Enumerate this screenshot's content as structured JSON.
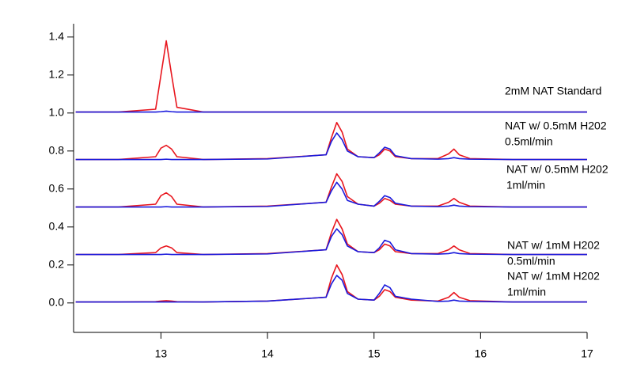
{
  "chart_data": {
    "type": "line",
    "x": [
      12.2,
      12.6,
      12.95,
      13.0,
      13.05,
      13.1,
      13.15,
      13.4,
      14.0,
      14.55,
      14.6,
      14.65,
      14.7,
      14.75,
      14.85,
      15.0,
      15.05,
      15.1,
      15.15,
      15.2,
      15.35,
      15.6,
      15.7,
      15.75,
      15.8,
      15.9,
      16.3,
      17.0
    ],
    "series": [
      {
        "color": "#e8161e",
        "values": [
          1.005,
          1.005,
          1.02,
          1.2,
          1.38,
          1.2,
          1.03,
          1.005,
          1.005,
          1.005,
          1.005,
          1.005,
          1.005,
          1.005,
          1.005,
          1.005,
          1.005,
          1.005,
          1.005,
          1.005,
          1.005,
          1.005,
          1.005,
          1.005,
          1.005,
          1.005,
          1.005,
          1.005
        ]
      },
      {
        "color": "#1a1adc",
        "values": [
          1.005,
          1.005,
          1.005,
          1.007,
          1.01,
          1.007,
          1.005,
          1.005,
          1.005,
          1.005,
          1.005,
          1.005,
          1.005,
          1.005,
          1.005,
          1.005,
          1.005,
          1.005,
          1.005,
          1.005,
          1.005,
          1.005,
          1.005,
          1.005,
          1.005,
          1.005,
          1.005,
          1.005
        ]
      },
      {
        "color": "#e8161e",
        "values": [
          0.755,
          0.755,
          0.77,
          0.815,
          0.83,
          0.81,
          0.77,
          0.755,
          0.76,
          0.78,
          0.87,
          0.95,
          0.9,
          0.81,
          0.77,
          0.765,
          0.78,
          0.81,
          0.8,
          0.77,
          0.76,
          0.76,
          0.785,
          0.81,
          0.78,
          0.76,
          0.755,
          0.755
        ]
      },
      {
        "color": "#1a1adc",
        "values": [
          0.755,
          0.755,
          0.755,
          0.755,
          0.757,
          0.755,
          0.755,
          0.755,
          0.758,
          0.78,
          0.85,
          0.895,
          0.86,
          0.8,
          0.77,
          0.765,
          0.79,
          0.82,
          0.81,
          0.775,
          0.76,
          0.757,
          0.76,
          0.765,
          0.76,
          0.757,
          0.755,
          0.755
        ]
      },
      {
        "color": "#e8161e",
        "values": [
          0.505,
          0.505,
          0.52,
          0.565,
          0.58,
          0.56,
          0.52,
          0.505,
          0.51,
          0.53,
          0.61,
          0.68,
          0.64,
          0.56,
          0.52,
          0.51,
          0.525,
          0.55,
          0.54,
          0.52,
          0.51,
          0.51,
          0.53,
          0.55,
          0.53,
          0.51,
          0.505,
          0.505
        ]
      },
      {
        "color": "#1a1adc",
        "values": [
          0.505,
          0.505,
          0.505,
          0.505,
          0.507,
          0.505,
          0.505,
          0.505,
          0.508,
          0.53,
          0.59,
          0.635,
          0.6,
          0.54,
          0.52,
          0.51,
          0.535,
          0.565,
          0.555,
          0.525,
          0.51,
          0.507,
          0.51,
          0.515,
          0.51,
          0.507,
          0.505,
          0.505
        ]
      },
      {
        "color": "#e8161e",
        "values": [
          0.255,
          0.255,
          0.265,
          0.29,
          0.3,
          0.29,
          0.265,
          0.255,
          0.26,
          0.28,
          0.37,
          0.44,
          0.39,
          0.31,
          0.27,
          0.265,
          0.28,
          0.31,
          0.3,
          0.27,
          0.26,
          0.26,
          0.28,
          0.3,
          0.28,
          0.26,
          0.255,
          0.255
        ]
      },
      {
        "color": "#1a1adc",
        "values": [
          0.255,
          0.255,
          0.255,
          0.255,
          0.257,
          0.255,
          0.255,
          0.255,
          0.258,
          0.28,
          0.35,
          0.39,
          0.36,
          0.3,
          0.27,
          0.265,
          0.29,
          0.33,
          0.32,
          0.28,
          0.26,
          0.257,
          0.26,
          0.265,
          0.26,
          0.257,
          0.255,
          0.255
        ]
      },
      {
        "color": "#e8161e",
        "values": [
          0.005,
          0.005,
          0.007,
          0.01,
          0.012,
          0.01,
          0.007,
          0.005,
          0.01,
          0.03,
          0.13,
          0.2,
          0.15,
          0.06,
          0.02,
          0.015,
          0.035,
          0.07,
          0.06,
          0.03,
          0.015,
          0.01,
          0.03,
          0.055,
          0.03,
          0.012,
          0.005,
          0.005
        ]
      },
      {
        "color": "#1a1adc",
        "values": [
          0.005,
          0.005,
          0.005,
          0.005,
          0.005,
          0.005,
          0.005,
          0.005,
          0.01,
          0.03,
          0.1,
          0.145,
          0.12,
          0.05,
          0.02,
          0.015,
          0.05,
          0.095,
          0.08,
          0.035,
          0.02,
          0.008,
          0.01,
          0.015,
          0.01,
          0.008,
          0.005,
          0.005
        ]
      }
    ],
    "annotations": [
      [
        "2mM NAT Standard"
      ],
      [
        "NAT w/ 0.5mM H202",
        "0.5ml/min"
      ],
      [
        "NAT w/ 0.5mM H202",
        "1ml/min"
      ],
      [
        "NAT w/ 1mM H202",
        "0.5ml/min"
      ],
      [
        "NAT w/ 1mM H202",
        "1ml/min"
      ]
    ],
    "xlim": [
      12.18,
      17.0
    ],
    "ylim": [
      -0.155,
      1.47
    ],
    "xticks": [
      13,
      14,
      15,
      16,
      17
    ],
    "yticks": [
      {
        "value": 0,
        "label": "0.0"
      },
      0.2,
      0.4,
      0.6,
      0.8,
      {
        "value": 1,
        "label": "1.0"
      },
      1.2,
      1.4
    ]
  }
}
